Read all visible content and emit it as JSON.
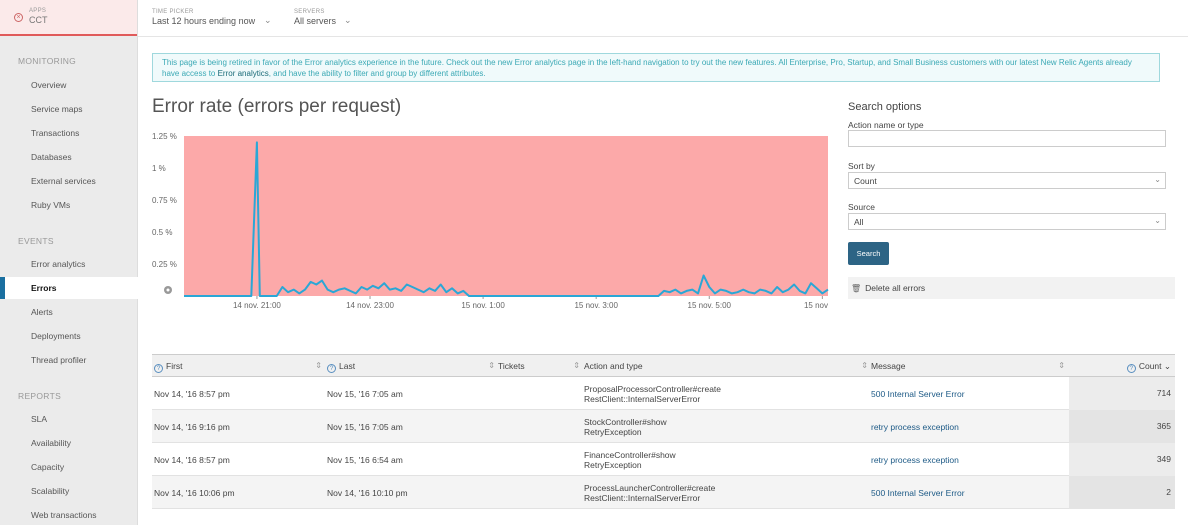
{
  "app": {
    "label": "APPS",
    "name": "CCT"
  },
  "sidebar": {
    "monitoring_title": "MONITORING",
    "monitoring": [
      "Overview",
      "Service maps",
      "Transactions",
      "Databases",
      "External services",
      "Ruby VMs"
    ],
    "events_title": "EVENTS",
    "events": [
      "Error analytics",
      "Errors",
      "Alerts",
      "Deployments",
      "Thread profiler"
    ],
    "reports_title": "REPORTS",
    "reports": [
      "SLA",
      "Availability",
      "Capacity",
      "Scalability",
      "Web transactions"
    ],
    "active": "Errors"
  },
  "topbar": {
    "time_label": "TIME PICKER",
    "time_value": "Last 12 hours ending now",
    "servers_label": "SERVERS",
    "servers_value": "All servers"
  },
  "notice": {
    "text_before": "This page is being retired in favor of the Error analytics experience in the future. Check out the new Error analytics page in the left-hand navigation to try out the new features. All Enterprise, Pro, Startup, and Small Business customers with our latest New Relic Agents already have access to ",
    "link": "Error analytics",
    "text_after": ", and have the ability to filter and group by different attributes."
  },
  "chart_data": {
    "type": "line",
    "title": "Error rate (errors per request)",
    "y_ticks": [
      "1.25 %",
      "1 %",
      "0.75 %",
      "0.5 %",
      "0.25 %"
    ],
    "ylim": [
      0,
      1.25
    ],
    "x_ticks": [
      "14 nov. 21:00",
      "14 nov. 23:00",
      "15 nov. 1:00",
      "15 nov. 3:00",
      "15 nov. 5:00",
      "15 nov"
    ],
    "x_tick_hours": [
      0,
      2,
      4,
      6,
      8,
      10
    ],
    "xlim_hours": [
      -1.29,
      10.1
    ],
    "background_color": "#fca9a9",
    "line_color": "#2aa7d6",
    "series": [
      {
        "x_hours": [
          -1.29,
          -0.1,
          0,
          0.05,
          0.15,
          0.25,
          0.35,
          0.45,
          0.55,
          0.65,
          0.75,
          0.85,
          0.95,
          1.05,
          1.15,
          1.25,
          1.35,
          1.45,
          1.55,
          1.65,
          1.75,
          1.85,
          1.95,
          2.05,
          2.15,
          2.25,
          2.35,
          2.45,
          2.55,
          2.65,
          2.75,
          2.85,
          2.95,
          3.05,
          3.15,
          3.25,
          3.35,
          3.45,
          3.55,
          3.65,
          3.75,
          7.1,
          7.2,
          7.3,
          7.4,
          7.5,
          7.6,
          7.7,
          7.8,
          7.9,
          8.0,
          8.1,
          8.2,
          8.3,
          8.4,
          8.5,
          8.6,
          8.7,
          8.8,
          8.9,
          9.0,
          9.1,
          9.2,
          9.3,
          9.4,
          9.5,
          9.6,
          9.7,
          9.8,
          9.9,
          10.0,
          10.1
        ],
        "y_percent": [
          0,
          0,
          1.2,
          0,
          0,
          0,
          0,
          0.07,
          0.03,
          0.05,
          0.02,
          0.05,
          0.11,
          0.09,
          0.12,
          0.05,
          0.03,
          0.05,
          0.06,
          0.04,
          0.02,
          0.07,
          0.05,
          0.08,
          0.06,
          0.1,
          0.05,
          0.06,
          0.04,
          0.09,
          0.07,
          0.05,
          0.03,
          0.06,
          0.04,
          0.09,
          0.03,
          0.06,
          0.02,
          0.04,
          0,
          0,
          0.04,
          0.03,
          0.05,
          0.02,
          0.04,
          0.05,
          0.02,
          0.16,
          0.07,
          0.02,
          0.05,
          0.04,
          0.02,
          0.03,
          0.05,
          0.03,
          0.02,
          0.05,
          0.04,
          0.02,
          0.07,
          0.03,
          0.05,
          0.09,
          0.04,
          0.02,
          0.1,
          0.06,
          0.02,
          0.05
        ]
      }
    ]
  },
  "search": {
    "title": "Search options",
    "name_label": "Action name or type",
    "name_value": "",
    "sort_label": "Sort by",
    "sort_value": "Count",
    "source_label": "Source",
    "source_value": "All",
    "button": "Search",
    "delete": "Delete all errors"
  },
  "table": {
    "headers": {
      "first": "First",
      "last": "Last",
      "tickets": "Tickets",
      "action": "Action and type",
      "message": "Message",
      "count": "Count"
    },
    "rows": [
      {
        "first": "Nov 14, '16 8:57 pm",
        "last": "Nov 15, '16 7:05 am",
        "action": "ProposalProcessorController#create",
        "type": "RestClient::InternalServerError",
        "message": "500 Internal Server Error",
        "count": "714"
      },
      {
        "first": "Nov 14, '16 9:16 pm",
        "last": "Nov 15, '16 7:05 am",
        "action": "StockController#show",
        "type": "RetryException",
        "message": "retry process exception",
        "count": "365"
      },
      {
        "first": "Nov 14, '16 8:57 pm",
        "last": "Nov 15, '16 6:54 am",
        "action": "FinanceController#show",
        "type": "RetryException",
        "message": "retry process exception",
        "count": "349"
      },
      {
        "first": "Nov 14, '16 10:06 pm",
        "last": "Nov 14, '16 10:10 pm",
        "action": "ProcessLauncherController#create",
        "type": "RestClient::InternalServerError",
        "message": "500 Internal Server Error",
        "count": "2"
      }
    ]
  }
}
